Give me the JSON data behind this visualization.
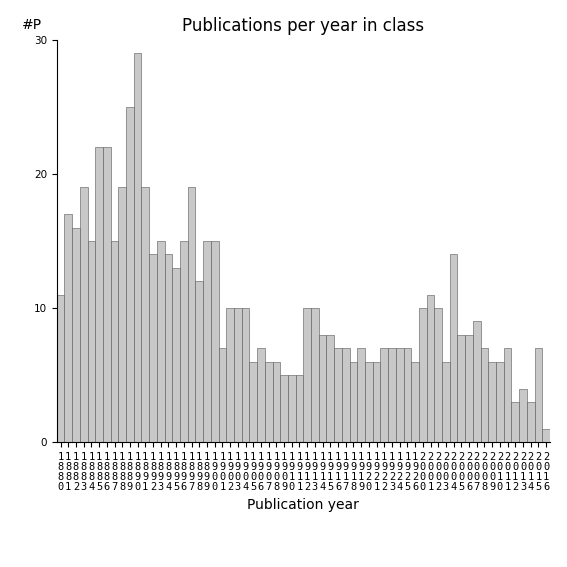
{
  "title": "Publications per year in class",
  "xlabel": "Publication year",
  "ylabel": "#P",
  "years": [
    1880,
    1881,
    1882,
    1883,
    1884,
    1885,
    1886,
    1887,
    1888,
    1889,
    1890,
    1891,
    1892,
    1893,
    1894,
    1895,
    1896,
    1897,
    1898,
    1899,
    1900,
    1901,
    1902,
    1903,
    1904,
    1905,
    1906,
    1907,
    1908,
    1909,
    1910,
    1911,
    1912,
    1913,
    1914,
    1915,
    1916,
    1917,
    1918,
    1919,
    1920,
    1921,
    1922,
    1923,
    1924,
    1925,
    1926,
    2000,
    2001,
    2002,
    2003,
    2004,
    2005,
    2006,
    2007,
    2008,
    2009,
    2010,
    2011,
    2012,
    2013,
    2014,
    2015,
    2016
  ],
  "values": [
    11,
    17,
    16,
    19,
    15,
    22,
    22,
    15,
    19,
    25,
    29,
    19,
    14,
    15,
    14,
    13,
    15,
    19,
    12,
    15,
    15,
    7,
    10,
    10,
    10,
    6,
    7,
    6,
    6,
    5,
    5,
    5,
    10,
    10,
    8,
    8,
    7,
    7,
    6,
    7,
    6,
    6,
    7,
    7,
    7,
    7,
    6,
    10,
    11,
    10,
    6,
    14,
    8,
    8,
    9,
    7,
    6,
    6,
    7,
    3,
    4,
    3,
    7,
    1
  ],
  "bar_color": "#c8c8c8",
  "bar_edge_color": "#555555",
  "ylim": [
    0,
    30
  ],
  "yticks": [
    0,
    10,
    20,
    30
  ],
  "title_fontsize": 12,
  "label_fontsize": 10,
  "tick_fontsize": 7.5,
  "background_color": "#ffffff"
}
